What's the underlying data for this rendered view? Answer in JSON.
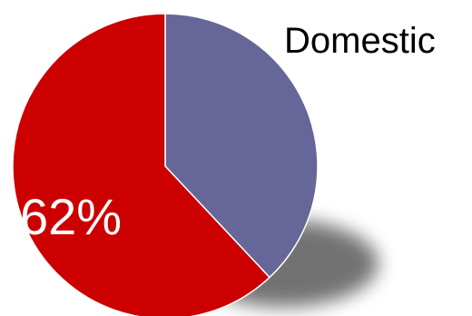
{
  "chart_data": {
    "type": "pie",
    "title": "",
    "slices": [
      {
        "name": "",
        "value": 38,
        "color": "#666699"
      },
      {
        "name": "",
        "value": 62,
        "color": "#cc0000",
        "label": "62%"
      }
    ],
    "legend": {
      "placement": "top-right",
      "entries": [
        "Domestic"
      ]
    },
    "shadow": true
  }
}
